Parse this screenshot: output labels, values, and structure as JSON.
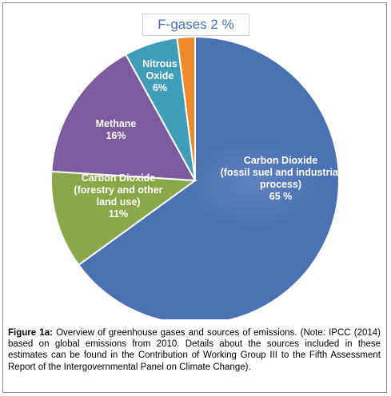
{
  "chart_data": {
    "type": "pie",
    "title": "",
    "slices": [
      {
        "name": "Carbon Dioxide (fossil suel and industrial process)",
        "label_lines": [
          "Carbon Dioxide",
          "(fossil suel and industrial",
          "process)",
          "65 %"
        ],
        "value": 65,
        "color": "#4a72b2"
      },
      {
        "name": "Carbon Dioxide (forestry and other land use)",
        "label_lines": [
          "Carbon Dioxide",
          "(forestry and other",
          "land use)",
          "11%"
        ],
        "value": 11,
        "color": "#8aa84a"
      },
      {
        "name": "Methane",
        "label_lines": [
          "Methane",
          "16%"
        ],
        "value": 16,
        "color": "#7b5c9e"
      },
      {
        "name": "Nitrous Oxide",
        "label_lines": [
          "Nitrous",
          "Oxide",
          "6%"
        ],
        "value": 6,
        "color": "#3f9db7"
      },
      {
        "name": "F-gases",
        "label_lines": [
          "F-gases 2 %"
        ],
        "value": 2,
        "color": "#ef8a2c"
      }
    ]
  },
  "caption": {
    "figure_label": "Figure 1a:",
    "text": " Overview of greenhouse gases and sources of emissions. (Note: IPCC (2014) based on global emissions from 2010. Details about the sources included in these estimates can be found in the Contribution of Working Group III to the Fifth Assessment Report of the Intergovernmental Panel on Climate Change)."
  }
}
